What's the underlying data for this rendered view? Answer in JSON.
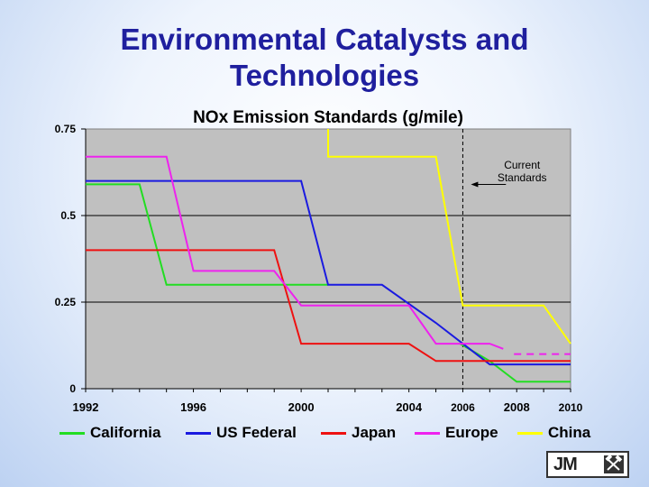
{
  "slide": {
    "title_line1": "Environmental Catalysts and",
    "title_line2": "Technologies"
  },
  "logo": {
    "text": "JM",
    "icon": "hammers-icon"
  },
  "chart_data": {
    "type": "line",
    "title": "NOx Emission Standards (g/mile)",
    "xlabel": "",
    "ylabel": "",
    "xlim": [
      1992,
      2010
    ],
    "ylim": [
      0,
      0.75
    ],
    "x_ticks": [
      {
        "value": 1992,
        "label": "1992"
      },
      {
        "value": 1996,
        "label": "1996"
      },
      {
        "value": 2000,
        "label": "2000"
      },
      {
        "value": 2004,
        "label": "2004"
      },
      {
        "value": 2006,
        "label": "2006"
      },
      {
        "value": 2008,
        "label": "2008"
      },
      {
        "value": 2010,
        "label": "2010"
      }
    ],
    "y_ticks": [
      {
        "value": 0,
        "label": "0"
      },
      {
        "value": 0.25,
        "label": "0.25"
      },
      {
        "value": 0.5,
        "label": "0.5"
      },
      {
        "value": 0.75,
        "label": "0.75"
      }
    ],
    "reference_line": {
      "x": 2006,
      "label_line1": "Current",
      "label_line2": "Standards",
      "label_x": 2008.2,
      "label_y": 0.63,
      "arrow_from_x": 2007.6,
      "arrow_to_x": 2006.3,
      "arrow_y": 0.59
    },
    "series": [
      {
        "name": "California",
        "color": "#22dd22",
        "points": [
          [
            1992,
            0.59
          ],
          [
            1994,
            0.59
          ],
          [
            1995,
            0.3
          ],
          [
            2001,
            0.3
          ]
        ]
      },
      {
        "name": "California",
        "color": "#22dd22",
        "points": [
          [
            2005.9,
            0.13
          ],
          [
            2007,
            0.08
          ],
          [
            2008,
            0.02
          ],
          [
            2010,
            0.02
          ]
        ]
      },
      {
        "name": "US Federal",
        "color": "#1a1ae0",
        "points": [
          [
            1992,
            0.6
          ],
          [
            2000,
            0.6
          ],
          [
            2001,
            0.3
          ],
          [
            2003,
            0.3
          ],
          [
            2004,
            0.245
          ],
          [
            2005,
            0.19
          ],
          [
            2007,
            0.07
          ],
          [
            2010,
            0.07
          ]
        ]
      },
      {
        "name": "Japan",
        "color": "#ee1111",
        "points": [
          [
            1992,
            0.4
          ],
          [
            1999,
            0.4
          ],
          [
            2000,
            0.13
          ],
          [
            2004,
            0.13
          ],
          [
            2005,
            0.08
          ],
          [
            2010,
            0.08
          ]
        ]
      },
      {
        "name": "Europe",
        "color": "#ee22ee",
        "points": [
          [
            1992,
            0.67
          ],
          [
            1995,
            0.67
          ],
          [
            1996,
            0.34
          ],
          [
            1999,
            0.34
          ],
          [
            2000,
            0.24
          ],
          [
            2004,
            0.24
          ],
          [
            2005,
            0.13
          ],
          [
            2007,
            0.13
          ],
          [
            2007.5,
            0.115
          ]
        ]
      },
      {
        "name": "Europe",
        "color": "#ee22ee",
        "dashed": true,
        "points": [
          [
            2007.9,
            0.1
          ],
          [
            2010,
            0.1
          ]
        ]
      },
      {
        "name": "China",
        "color": "#ffff00",
        "points": [
          [
            2001,
            0.75
          ],
          [
            2001,
            0.67
          ],
          [
            2005,
            0.67
          ],
          [
            2006,
            0.24
          ],
          [
            2009,
            0.24
          ],
          [
            2010,
            0.13
          ]
        ]
      }
    ],
    "legend": [
      {
        "name": "California",
        "color": "#22dd22"
      },
      {
        "name": "US Federal",
        "color": "#1a1ae0"
      },
      {
        "name": "Japan",
        "color": "#ee1111"
      },
      {
        "name": "Europe",
        "color": "#ee22ee"
      },
      {
        "name": "China",
        "color": "#ffff00"
      }
    ],
    "legend_position": "bottom"
  }
}
